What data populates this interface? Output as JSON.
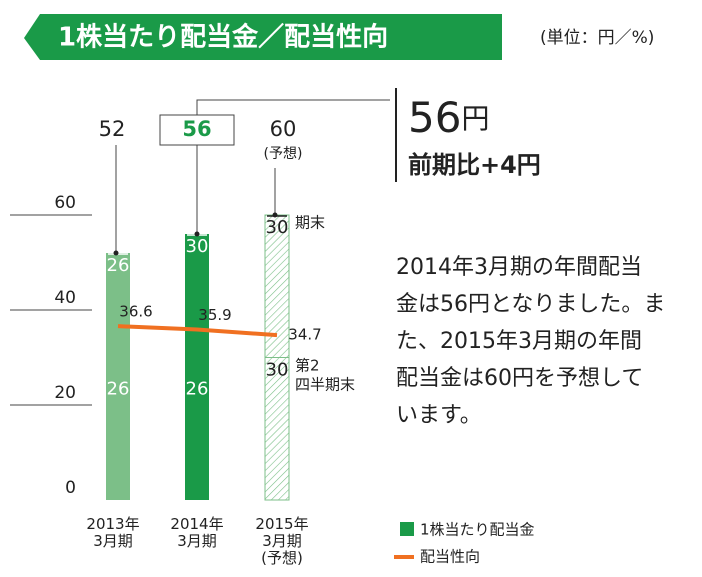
{
  "chart_data": {
    "type": "stacked_bar_line",
    "title": "1株当たり配当金／配当性向",
    "unit_note": "(単位：円／%)",
    "categories": [
      "2013年\n3月期",
      "2014年\n3月期",
      "2015年\n3月期\n(予想)"
    ],
    "series": [
      {
        "name": "第2\n四半期末",
        "values": [
          26,
          26,
          30
        ]
      },
      {
        "name": "期末",
        "values": [
          26,
          30,
          30
        ]
      }
    ],
    "bar_colors": [
      "#7cbf88",
      "#1a9a48",
      "#ffffff"
    ],
    "hatched": [
      false,
      false,
      true
    ],
    "bar_legend": "1株当たり配当金",
    "bar_legend_color": "#1a9a48",
    "total_labels": [
      52,
      56,
      60
    ],
    "forecast_note": "(予想)",
    "line": {
      "name": "配当性向",
      "color": "#f07021",
      "values": [
        36.6,
        35.9,
        34.7
      ]
    },
    "ylim": [
      0,
      60
    ],
    "yticks": [
      0,
      20,
      40,
      60
    ],
    "callout": {
      "value": "56",
      "unit": "円",
      "change": "前期比+4円"
    },
    "text_lines": [
      "2014年3月期の年間配当",
      "金は56円となりました。ま",
      "た、2015年3月期の年間",
      "配当金は60円を予想して",
      "います。"
    ]
  }
}
